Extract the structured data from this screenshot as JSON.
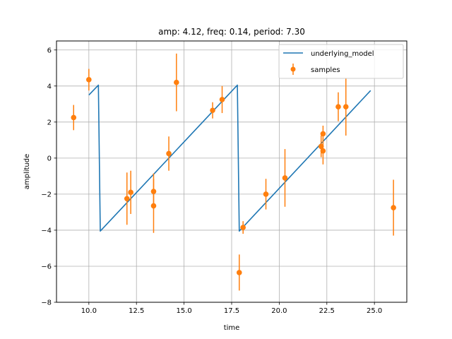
{
  "chart_data": {
    "type": "line",
    "title": "amp: 4.12, freq: 0.14, period: 7.30",
    "xlabel": "time",
    "ylabel": "amplitude",
    "xlim": [
      8.3,
      26.7
    ],
    "ylim": [
      -8,
      6.5
    ],
    "xticks": [
      10.0,
      12.5,
      15.0,
      17.5,
      20.0,
      22.5,
      25.0
    ],
    "xtick_labels": [
      "10.0",
      "12.5",
      "15.0",
      "17.5",
      "20.0",
      "22.5",
      "25.0"
    ],
    "yticks": [
      -8,
      -6,
      -4,
      -2,
      0,
      2,
      4,
      6
    ],
    "ytick_labels": [
      "−8",
      "−6",
      "−4",
      "−2",
      "0",
      "2",
      "4",
      "6"
    ],
    "grid": true,
    "legend_position": "top-right",
    "colors": {
      "model": "#1f77b4",
      "samples": "#ff7f0e",
      "grid": "#b0b0b0"
    },
    "series": [
      {
        "name": "underlying_model",
        "kind": "line",
        "x": [
          10.0,
          10.5,
          10.6,
          17.8,
          17.9,
          24.8
        ],
        "y": [
          3.5,
          4.05,
          -4.05,
          4.05,
          -4.05,
          3.75
        ]
      },
      {
        "name": "samples",
        "kind": "errorbar",
        "x": [
          9.2,
          10.0,
          12.0,
          12.2,
          13.4,
          13.4,
          14.2,
          14.6,
          16.5,
          17.0,
          17.9,
          18.1,
          19.3,
          20.3,
          22.2,
          22.3,
          22.3,
          23.1,
          23.5,
          26.0
        ],
        "y": [
          2.25,
          4.35,
          -2.25,
          -1.9,
          -1.85,
          -2.65,
          0.25,
          4.2,
          2.65,
          3.25,
          -6.35,
          -3.85,
          -2.0,
          -1.1,
          0.65,
          1.35,
          0.4,
          2.85,
          2.85,
          -2.75
        ],
        "yerr": [
          0.7,
          0.6,
          1.45,
          1.2,
          1.0,
          1.5,
          0.95,
          1.6,
          0.45,
          0.75,
          1.0,
          0.35,
          0.85,
          1.6,
          0.6,
          0.45,
          0.75,
          0.8,
          1.6,
          1.55
        ]
      }
    ]
  }
}
